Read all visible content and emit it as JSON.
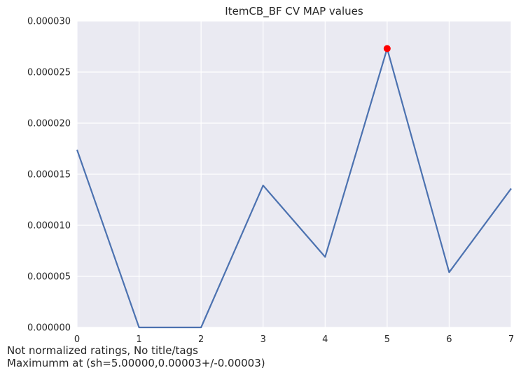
{
  "chart_data": {
    "type": "line",
    "title": "ItemCB_BF CV MAP values",
    "xlabel": "",
    "ylabel": "",
    "x": [
      0,
      1,
      2,
      3,
      4,
      5,
      6,
      7
    ],
    "xticks": [
      "0",
      "1",
      "2",
      "3",
      "4",
      "5",
      "6",
      "7"
    ],
    "xlim": [
      0,
      7
    ],
    "ylim": [
      0,
      3e-05
    ],
    "yticks": [
      "0.000000",
      "0.000005",
      "0.000010",
      "0.000015",
      "0.000020",
      "0.000025",
      "0.000030"
    ],
    "ytick_values": [
      0,
      5e-06,
      1e-05,
      1.5e-05,
      2e-05,
      2.5e-05,
      3e-05
    ],
    "series": [
      {
        "values": [
          1.74e-05,
          0.0,
          0.0,
          1.39e-05,
          6.9e-06,
          2.73e-05,
          5.4e-06,
          1.36e-05
        ],
        "color": "#4c72b0"
      }
    ],
    "highlight": {
      "x": 5,
      "y": 2.73e-05,
      "color": "#ff0000"
    },
    "grid": true,
    "background_color": "#eaeaf2",
    "grid_color": "#ffffff"
  },
  "captions": {
    "line1": "Not normalized ratings, No title/tags",
    "line2": "Maximumm at (sh=5.00000,0.00003+/-0.00003)"
  }
}
